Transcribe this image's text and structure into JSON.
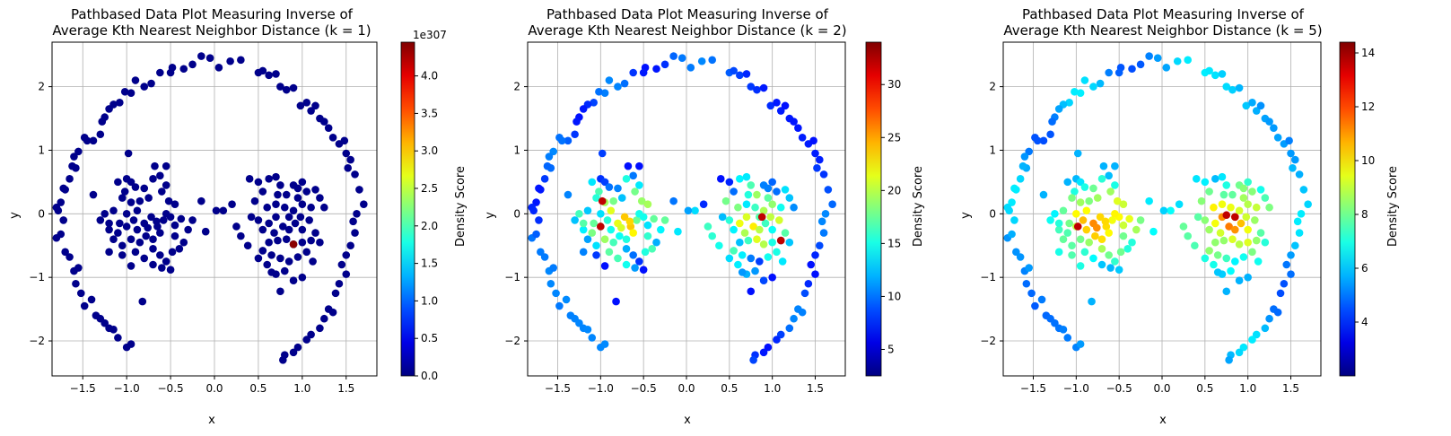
{
  "chart_data": [
    {
      "type": "scatter",
      "title_line1": "Pathbased Data Plot Measuring Inverse of",
      "title_line2": "Average Kth Nearest Neighbor Distance (k = 1)",
      "xlabel": "x",
      "ylabel": "y",
      "xlim": [
        -1.85,
        1.85
      ],
      "ylim": [
        -2.55,
        2.7
      ],
      "xticks": [
        -1.5,
        -1.0,
        -0.5,
        0.0,
        0.5,
        1.0,
        1.5
      ],
      "xtick_labels": [
        "−1.5",
        "−1.0",
        "−0.5",
        "0.0",
        "0.5",
        "1.0",
        "1.5"
      ],
      "yticks": [
        -2,
        -1,
        0,
        1,
        2
      ],
      "ytick_labels": [
        "−2",
        "−1",
        "0",
        "1",
        "2"
      ],
      "grid": true,
      "colorbar": {
        "label": "Density Score",
        "cmap": "jet",
        "range": [
          0.0,
          4.45
        ],
        "ticks": [
          0.0,
          0.5,
          1.0,
          1.5,
          2.0,
          2.5,
          3.0,
          3.5,
          4.0
        ],
        "tick_labels": [
          "0.0",
          "0.5",
          "1.0",
          "1.5",
          "2.0",
          "2.5",
          "3.0",
          "3.5",
          "4.0"
        ],
        "multiplier": "1e307"
      },
      "hot_points": [
        [
          0.9,
          -0.48
        ]
      ],
      "mode": "k1"
    },
    {
      "type": "scatter",
      "title_line1": "Pathbased Data Plot Measuring Inverse of",
      "title_line2": "Average Kth Nearest Neighbor Distance (k = 2)",
      "xlabel": "x",
      "ylabel": "y",
      "xlim": [
        -1.85,
        1.85
      ],
      "ylim": [
        -2.55,
        2.7
      ],
      "xticks": [
        -1.5,
        -1.0,
        -0.5,
        0.0,
        0.5,
        1.0,
        1.5
      ],
      "xtick_labels": [
        "−1.5",
        "−1.0",
        "−0.5",
        "0.0",
        "0.5",
        "1.0",
        "1.5"
      ],
      "yticks": [
        -2,
        -1,
        0,
        1,
        2
      ],
      "ytick_labels": [
        "−2",
        "−1",
        "0",
        "1",
        "2"
      ],
      "grid": true,
      "colorbar": {
        "label": "Density Score",
        "cmap": "jet",
        "range": [
          2.5,
          34
        ],
        "ticks": [
          5,
          10,
          15,
          20,
          25,
          30
        ],
        "tick_labels": [
          "5",
          "10",
          "15",
          "20",
          "25",
          "30"
        ]
      },
      "hot_points": [
        [
          -0.98,
          0.2
        ],
        [
          0.88,
          -0.05
        ],
        [
          1.1,
          -0.42
        ],
        [
          -1.0,
          -0.2
        ]
      ],
      "mode": "k2"
    },
    {
      "type": "scatter",
      "title_line1": "Pathbased Data Plot Measuring Inverse of",
      "title_line2": "Average Kth Nearest Neighbor Distance (k = 5)",
      "xlabel": "x",
      "ylabel": "y",
      "xlim": [
        -1.85,
        1.85
      ],
      "ylim": [
        -2.55,
        2.7
      ],
      "xticks": [
        -1.5,
        -1.0,
        -0.5,
        0.0,
        0.5,
        1.0,
        1.5
      ],
      "xtick_labels": [
        "−1.5",
        "−1.0",
        "−0.5",
        "0.0",
        "0.5",
        "1.0",
        "1.5"
      ],
      "yticks": [
        -2,
        -1,
        0,
        1,
        2
      ],
      "ytick_labels": [
        "−2",
        "−1",
        "0",
        "1",
        "2"
      ],
      "grid": true,
      "colorbar": {
        "label": "Density Score",
        "cmap": "jet",
        "range": [
          2.0,
          14.4
        ],
        "ticks": [
          4,
          6,
          8,
          10,
          12,
          14
        ],
        "tick_labels": [
          "4",
          "6",
          "8",
          "10",
          "12",
          "14"
        ]
      },
      "hot_points": [
        [
          0.85,
          -0.05
        ],
        [
          -0.98,
          -0.2
        ],
        [
          0.75,
          -0.02
        ]
      ],
      "mode": "k5"
    }
  ],
  "points": [
    [
      -0.15,
      2.48
    ],
    [
      -0.05,
      2.45
    ],
    [
      0.05,
      2.3
    ],
    [
      0.18,
      2.4
    ],
    [
      0.3,
      2.42
    ],
    [
      -0.25,
      2.35
    ],
    [
      -0.35,
      2.28
    ],
    [
      -0.48,
      2.3
    ],
    [
      -0.5,
      2.22
    ],
    [
      -0.62,
      2.22
    ],
    [
      -0.72,
      2.05
    ],
    [
      -0.8,
      2.0
    ],
    [
      -0.9,
      2.1
    ],
    [
      -0.95,
      1.9
    ],
    [
      -1.02,
      1.92
    ],
    [
      -1.08,
      1.75
    ],
    [
      -1.15,
      1.72
    ],
    [
      -1.2,
      1.65
    ],
    [
      -1.25,
      1.52
    ],
    [
      -1.28,
      1.45
    ],
    [
      -1.3,
      1.25
    ],
    [
      -1.38,
      1.15
    ],
    [
      -1.45,
      1.15
    ],
    [
      -1.48,
      1.2
    ],
    [
      -1.55,
      0.98
    ],
    [
      -1.6,
      0.9
    ],
    [
      -1.58,
      0.72
    ],
    [
      -1.62,
      0.75
    ],
    [
      -1.65,
      0.55
    ],
    [
      -1.7,
      0.38
    ],
    [
      -1.72,
      0.4
    ],
    [
      -1.75,
      0.18
    ],
    [
      -1.8,
      0.1
    ],
    [
      -1.78,
      0.05
    ],
    [
      -1.72,
      -0.1
    ],
    [
      -1.8,
      -0.38
    ],
    [
      -1.75,
      -0.32
    ],
    [
      -1.7,
      -0.6
    ],
    [
      -1.65,
      -0.68
    ],
    [
      -1.6,
      -0.9
    ],
    [
      -1.58,
      -1.1
    ],
    [
      -1.55,
      -0.85
    ],
    [
      -1.52,
      -1.25
    ],
    [
      -1.48,
      -1.45
    ],
    [
      -1.4,
      -1.35
    ],
    [
      -1.35,
      -1.6
    ],
    [
      -1.3,
      -1.65
    ],
    [
      -1.25,
      -1.72
    ],
    [
      -1.2,
      -1.8
    ],
    [
      -1.15,
      -1.82
    ],
    [
      -1.1,
      -1.95
    ],
    [
      -1.0,
      -2.1
    ],
    [
      -0.95,
      -2.05
    ],
    [
      0.5,
      2.22
    ],
    [
      0.55,
      2.25
    ],
    [
      0.62,
      2.18
    ],
    [
      0.7,
      2.2
    ],
    [
      0.75,
      2.0
    ],
    [
      0.82,
      1.95
    ],
    [
      0.9,
      1.98
    ],
    [
      0.98,
      1.7
    ],
    [
      1.05,
      1.75
    ],
    [
      1.1,
      1.62
    ],
    [
      1.15,
      1.7
    ],
    [
      1.2,
      1.5
    ],
    [
      1.25,
      1.45
    ],
    [
      1.3,
      1.35
    ],
    [
      1.35,
      1.2
    ],
    [
      1.42,
      1.1
    ],
    [
      1.48,
      1.15
    ],
    [
      1.5,
      0.95
    ],
    [
      1.52,
      0.72
    ],
    [
      1.55,
      0.85
    ],
    [
      1.6,
      0.62
    ],
    [
      1.65,
      0.38
    ],
    [
      1.7,
      0.15
    ],
    [
      1.62,
      0.0
    ],
    [
      1.58,
      -0.12
    ],
    [
      1.6,
      -0.3
    ],
    [
      1.55,
      -0.5
    ],
    [
      1.5,
      -0.65
    ],
    [
      1.45,
      -0.8
    ],
    [
      1.5,
      -0.95
    ],
    [
      1.42,
      -1.1
    ],
    [
      1.38,
      -1.25
    ],
    [
      1.3,
      -1.5
    ],
    [
      1.35,
      -1.55
    ],
    [
      1.25,
      -1.65
    ],
    [
      1.2,
      -1.8
    ],
    [
      1.1,
      -1.9
    ],
    [
      1.05,
      -1.98
    ],
    [
      0.95,
      -2.1
    ],
    [
      0.9,
      -2.18
    ],
    [
      0.8,
      -2.22
    ],
    [
      0.78,
      -2.3
    ],
    [
      -0.98,
      0.95
    ],
    [
      -1.0,
      0.55
    ],
    [
      -0.95,
      0.5
    ],
    [
      -1.02,
      0.35
    ],
    [
      -0.9,
      0.42
    ],
    [
      -0.8,
      0.4
    ],
    [
      -0.68,
      0.75
    ],
    [
      -0.55,
      0.75
    ],
    [
      -0.62,
      0.6
    ],
    [
      -0.7,
      0.55
    ],
    [
      -0.55,
      0.45
    ],
    [
      -0.6,
      0.35
    ],
    [
      -0.75,
      0.25
    ],
    [
      -0.85,
      0.2
    ],
    [
      -0.95,
      0.18
    ],
    [
      -1.05,
      0.25
    ],
    [
      -1.15,
      0.05
    ],
    [
      -1.25,
      0.0
    ],
    [
      -1.3,
      -0.1
    ],
    [
      -1.2,
      -0.25
    ],
    [
      -1.08,
      -0.15
    ],
    [
      -1.0,
      -0.2
    ],
    [
      -0.92,
      -0.1
    ],
    [
      -0.88,
      -0.25
    ],
    [
      -0.8,
      -0.15
    ],
    [
      -0.72,
      -0.05
    ],
    [
      -0.65,
      -0.2
    ],
    [
      -0.58,
      -0.1
    ],
    [
      -0.5,
      -0.05
    ],
    [
      -0.45,
      -0.18
    ],
    [
      -0.38,
      -0.08
    ],
    [
      -0.3,
      -0.25
    ],
    [
      -0.25,
      -0.1
    ],
    [
      -0.55,
      0.0
    ],
    [
      -0.62,
      -0.3
    ],
    [
      -0.7,
      -0.4
    ],
    [
      -0.78,
      -0.35
    ],
    [
      -0.85,
      -0.45
    ],
    [
      -0.95,
      -0.4
    ],
    [
      -1.05,
      -0.5
    ],
    [
      -1.15,
      -0.4
    ],
    [
      -1.2,
      -0.6
    ],
    [
      -0.9,
      -0.6
    ],
    [
      -0.8,
      -0.7
    ],
    [
      -0.7,
      -0.55
    ],
    [
      -0.62,
      -0.65
    ],
    [
      -0.55,
      -0.75
    ],
    [
      -0.48,
      -0.6
    ],
    [
      -0.4,
      -0.55
    ],
    [
      -0.35,
      -0.45
    ],
    [
      -0.45,
      -0.35
    ],
    [
      -0.5,
      -0.88
    ],
    [
      -0.6,
      -0.85
    ],
    [
      -0.7,
      -0.8
    ],
    [
      -0.82,
      -1.38
    ],
    [
      -0.95,
      -0.82
    ],
    [
      -1.05,
      -0.65
    ],
    [
      -1.2,
      -0.15
    ],
    [
      -1.38,
      0.3
    ],
    [
      -1.1,
      0.5
    ],
    [
      -0.52,
      0.2
    ],
    [
      -0.45,
      0.15
    ],
    [
      -0.15,
      0.2
    ],
    [
      -0.1,
      -0.28
    ],
    [
      -1.1,
      -0.3
    ],
    [
      -0.88,
      0.05
    ],
    [
      -0.76,
      -0.22
    ],
    [
      -0.66,
      -0.12
    ],
    [
      -1.0,
      0.0
    ],
    [
      0.4,
      0.55
    ],
    [
      0.5,
      0.5
    ],
    [
      0.55,
      0.35
    ],
    [
      0.62,
      0.55
    ],
    [
      0.7,
      0.58
    ],
    [
      0.75,
      0.45
    ],
    [
      0.82,
      0.3
    ],
    [
      0.9,
      0.45
    ],
    [
      0.95,
      0.4
    ],
    [
      1.0,
      0.5
    ],
    [
      1.05,
      0.35
    ],
    [
      1.15,
      0.38
    ],
    [
      1.2,
      0.25
    ],
    [
      1.1,
      0.1
    ],
    [
      1.0,
      0.15
    ],
    [
      0.9,
      0.05
    ],
    [
      0.8,
      0.1
    ],
    [
      0.7,
      0.15
    ],
    [
      0.6,
      0.1
    ],
    [
      0.5,
      -0.1
    ],
    [
      0.55,
      -0.25
    ],
    [
      0.62,
      -0.15
    ],
    [
      0.7,
      -0.05
    ],
    [
      0.78,
      -0.2
    ],
    [
      0.85,
      -0.05
    ],
    [
      0.92,
      -0.15
    ],
    [
      1.0,
      -0.25
    ],
    [
      1.08,
      -0.1
    ],
    [
      1.15,
      -0.3
    ],
    [
      1.2,
      -0.45
    ],
    [
      1.1,
      -0.42
    ],
    [
      1.0,
      -0.45
    ],
    [
      0.9,
      -0.48
    ],
    [
      0.82,
      -0.4
    ],
    [
      0.72,
      -0.42
    ],
    [
      0.62,
      -0.45
    ],
    [
      0.55,
      -0.58
    ],
    [
      0.65,
      -0.65
    ],
    [
      0.75,
      -0.7
    ],
    [
      0.85,
      -0.75
    ],
    [
      0.95,
      -0.68
    ],
    [
      1.05,
      -0.6
    ],
    [
      1.12,
      -0.75
    ],
    [
      0.6,
      -0.8
    ],
    [
      0.7,
      -0.95
    ],
    [
      0.8,
      -0.9
    ],
    [
      0.9,
      -1.05
    ],
    [
      1.0,
      -1.0
    ],
    [
      0.75,
      -1.22
    ],
    [
      0.65,
      -0.92
    ],
    [
      0.5,
      -0.7
    ],
    [
      0.38,
      -0.5
    ],
    [
      0.3,
      -0.35
    ],
    [
      0.25,
      -0.2
    ],
    [
      0.2,
      0.15
    ],
    [
      0.1,
      0.05
    ],
    [
      0.02,
      0.05
    ],
    [
      0.42,
      -0.05
    ],
    [
      0.46,
      0.2
    ],
    [
      0.72,
      0.3
    ],
    [
      0.85,
      -0.25
    ],
    [
      0.98,
      -0.05
    ],
    [
      1.25,
      0.1
    ],
    [
      0.68,
      -0.3
    ],
    [
      0.95,
      0.25
    ]
  ]
}
